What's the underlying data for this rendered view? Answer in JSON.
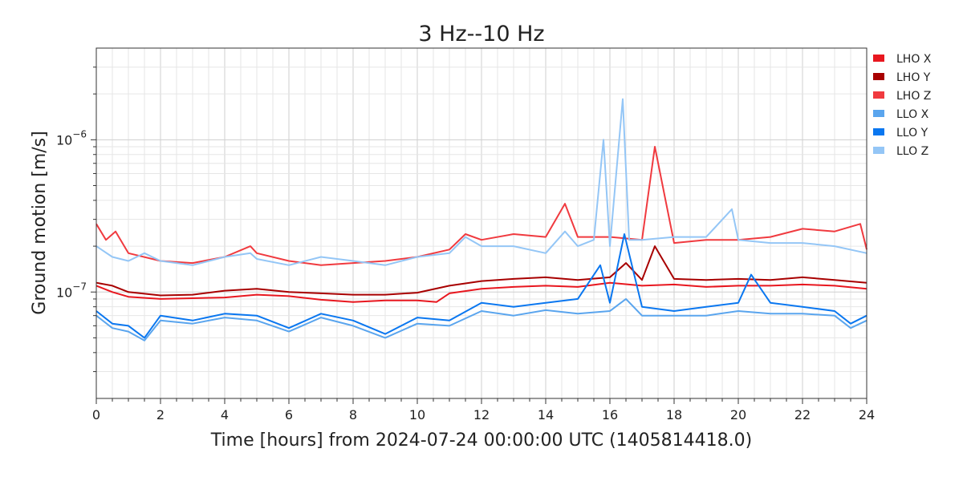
{
  "chart_data": {
    "type": "line",
    "title": "3 Hz--10 Hz",
    "xlabel": "Time [hours] from 2024-07-24 00:00:00 UTC (1405814418.0)",
    "ylabel": "Ground motion [m/s]",
    "xlim": [
      0,
      24
    ],
    "ylim": [
      2e-08,
      4e-06
    ],
    "yscale": "log",
    "grid": true,
    "legend_position": "outside-right-top",
    "x_ticks": [
      0,
      2,
      4,
      6,
      8,
      10,
      12,
      14,
      16,
      18,
      20,
      22,
      24
    ],
    "y_ticks": [
      {
        "value": 1e-07,
        "base": "10",
        "exp": "−7"
      },
      {
        "value": 1e-06,
        "base": "10",
        "exp": "−6"
      }
    ],
    "series": [
      {
        "name": "LHO X",
        "color": "#e8171f",
        "x": [
          0,
          0.5,
          1,
          2,
          3,
          4,
          5,
          6,
          7,
          8,
          9,
          10,
          10.6,
          11,
          12,
          13,
          14,
          15,
          16,
          17,
          18,
          19,
          20,
          21,
          22,
          23,
          24
        ],
        "values": [
          1.1e-07,
          1e-07,
          9.3e-08,
          9e-08,
          9.1e-08,
          9.2e-08,
          9.6e-08,
          9.4e-08,
          8.9e-08,
          8.6e-08,
          8.8e-08,
          8.8e-08,
          8.6e-08,
          9.8e-08,
          1.05e-07,
          1.08e-07,
          1.1e-07,
          1.08e-07,
          1.15e-07,
          1.1e-07,
          1.12e-07,
          1.08e-07,
          1.1e-07,
          1.1e-07,
          1.12e-07,
          1.1e-07,
          1.05e-07
        ]
      },
      {
        "name": "LHO Y",
        "color": "#a80000",
        "x": [
          0,
          0.5,
          1,
          2,
          3,
          4,
          5,
          6,
          7,
          8,
          9,
          10,
          11,
          12,
          13,
          14,
          15,
          16,
          16.5,
          17,
          17.4,
          18,
          19,
          20,
          21,
          22,
          23,
          24
        ],
        "values": [
          1.15e-07,
          1.1e-07,
          1e-07,
          9.5e-08,
          9.6e-08,
          1.02e-07,
          1.05e-07,
          1e-07,
          9.8e-08,
          9.6e-08,
          9.6e-08,
          9.9e-08,
          1.1e-07,
          1.18e-07,
          1.22e-07,
          1.25e-07,
          1.2e-07,
          1.25e-07,
          1.55e-07,
          1.2e-07,
          2e-07,
          1.22e-07,
          1.2e-07,
          1.22e-07,
          1.2e-07,
          1.25e-07,
          1.2e-07,
          1.15e-07
        ]
      },
      {
        "name": "LHO Z",
        "color": "#f03a3f",
        "x": [
          0,
          0.3,
          0.6,
          1,
          2,
          3,
          4,
          4.8,
          5,
          6,
          7,
          8,
          9,
          10,
          11,
          11.5,
          12,
          13,
          14,
          14.6,
          15,
          16,
          17,
          17.4,
          18,
          19,
          20,
          21,
          22,
          23,
          23.8,
          24
        ],
        "values": [
          2.8e-07,
          2.2e-07,
          2.5e-07,
          1.8e-07,
          1.6e-07,
          1.55e-07,
          1.7e-07,
          2e-07,
          1.8e-07,
          1.6e-07,
          1.5e-07,
          1.55e-07,
          1.6e-07,
          1.7e-07,
          1.9e-07,
          2.4e-07,
          2.2e-07,
          2.4e-07,
          2.3e-07,
          3.8e-07,
          2.3e-07,
          2.3e-07,
          2.2e-07,
          9e-07,
          2.1e-07,
          2.2e-07,
          2.2e-07,
          2.3e-07,
          2.6e-07,
          2.5e-07,
          2.8e-07,
          1.9e-07
        ]
      },
      {
        "name": "LLO X",
        "color": "#5aa5ee",
        "x": [
          0,
          0.5,
          1,
          1.5,
          2,
          3,
          4,
          5,
          6,
          7,
          8,
          9,
          10,
          11,
          12,
          13,
          14,
          15,
          16,
          16.5,
          17,
          18,
          19,
          20,
          21,
          22,
          23,
          23.5,
          24
        ],
        "values": [
          7e-08,
          5.8e-08,
          5.5e-08,
          4.8e-08,
          6.5e-08,
          6.2e-08,
          6.8e-08,
          6.5e-08,
          5.5e-08,
          6.8e-08,
          6e-08,
          5e-08,
          6.2e-08,
          6e-08,
          7.5e-08,
          7e-08,
          7.6e-08,
          7.2e-08,
          7.5e-08,
          9e-08,
          7e-08,
          7e-08,
          7e-08,
          7.5e-08,
          7.2e-08,
          7.2e-08,
          7e-08,
          5.8e-08,
          6.5e-08
        ]
      },
      {
        "name": "LLO Y",
        "color": "#0a77f0",
        "x": [
          0,
          0.5,
          1,
          1.5,
          2,
          3,
          4,
          5,
          6,
          7,
          8,
          9,
          10,
          11,
          12,
          13,
          14,
          15,
          15.7,
          16,
          16.45,
          17,
          18,
          19,
          20,
          20.4,
          21,
          22,
          23,
          23.5,
          24
        ],
        "values": [
          7.5e-08,
          6.2e-08,
          6e-08,
          5e-08,
          7e-08,
          6.5e-08,
          7.2e-08,
          7e-08,
          5.8e-08,
          7.2e-08,
          6.5e-08,
          5.3e-08,
          6.8e-08,
          6.5e-08,
          8.5e-08,
          8e-08,
          8.5e-08,
          9e-08,
          1.5e-07,
          8.5e-08,
          2.4e-07,
          8e-08,
          7.5e-08,
          8e-08,
          8.5e-08,
          1.3e-07,
          8.5e-08,
          8e-08,
          7.5e-08,
          6.2e-08,
          7e-08
        ]
      },
      {
        "name": "LLO Z",
        "color": "#94c6f6",
        "x": [
          0,
          0.5,
          1,
          1.5,
          2,
          3,
          4,
          4.8,
          5,
          6,
          7,
          8,
          9,
          10,
          11,
          11.5,
          12,
          13,
          14,
          14.6,
          15,
          15.5,
          15.8,
          16,
          16.4,
          16.6,
          17,
          18,
          19,
          19.8,
          20,
          21,
          22,
          23,
          24
        ],
        "values": [
          2e-07,
          1.7e-07,
          1.6e-07,
          1.8e-07,
          1.6e-07,
          1.5e-07,
          1.7e-07,
          1.8e-07,
          1.65e-07,
          1.5e-07,
          1.7e-07,
          1.6e-07,
          1.5e-07,
          1.7e-07,
          1.8e-07,
          2.3e-07,
          2e-07,
          2e-07,
          1.8e-07,
          2.5e-07,
          2e-07,
          2.2e-07,
          1e-06,
          2e-07,
          1.85e-06,
          2.2e-07,
          2.2e-07,
          2.3e-07,
          2.3e-07,
          3.5e-07,
          2.2e-07,
          2.1e-07,
          2.1e-07,
          2e-07,
          1.8e-07
        ]
      }
    ]
  }
}
